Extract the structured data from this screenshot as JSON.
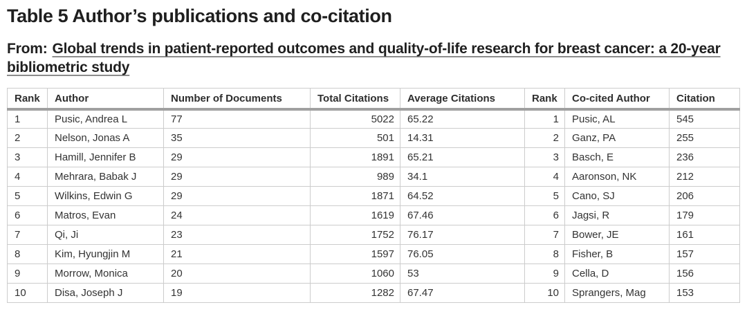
{
  "header": {
    "title": "Table 5 Author’s publications and co-citation",
    "from_label": "From:",
    "article_title": "Global trends in patient-reported outcomes and quality-of-life research for breast cancer: a 20-year bibliometric study"
  },
  "table": {
    "headers": [
      "Rank",
      "Author",
      "Number of Documents",
      "Total Citations",
      "Average Citations",
      "Rank",
      "Co-cited Author",
      "Citation"
    ],
    "rows": [
      [
        "1",
        "Pusic, Andrea L",
        "77",
        "5022",
        "65.22",
        "1",
        "Pusic, AL",
        "545"
      ],
      [
        "2",
        "Nelson, Jonas A",
        "35",
        "501",
        "14.31",
        "2",
        "Ganz, PA",
        "255"
      ],
      [
        "3",
        "Hamill, Jennifer B",
        "29",
        "1891",
        "65.21",
        "3",
        "Basch, E",
        "236"
      ],
      [
        "4",
        "Mehrara, Babak J",
        "29",
        "989",
        "34.1",
        "4",
        "Aaronson, NK",
        "212"
      ],
      [
        "5",
        "Wilkins, Edwin G",
        "29",
        "1871",
        "64.52",
        "5",
        "Cano, SJ",
        "206"
      ],
      [
        "6",
        "Matros, Evan",
        "24",
        "1619",
        "67.46",
        "6",
        "Jagsi, R",
        "179"
      ],
      [
        "7",
        "Qi, Ji",
        "23",
        "1752",
        "76.17",
        "7",
        "Bower, JE",
        "161"
      ],
      [
        "8",
        "Kim, Hyungjin M",
        "21",
        "1597",
        "76.05",
        "8",
        "Fisher, B",
        "157"
      ],
      [
        "9",
        "Morrow, Monica",
        "20",
        "1060",
        "53",
        "9",
        "Cella, D",
        "156"
      ],
      [
        "10",
        "Disa, Joseph J",
        "19",
        "1282",
        "67.47",
        "10",
        "Sprangers, Mag",
        "153"
      ]
    ]
  },
  "colors": {
    "title_text": "#1f1f1f",
    "body_text": "#333333",
    "border_light": "#cccccc",
    "header_rule": "#a0a0a0",
    "link_underline": "#8c8c8c",
    "background": "#ffffff"
  }
}
